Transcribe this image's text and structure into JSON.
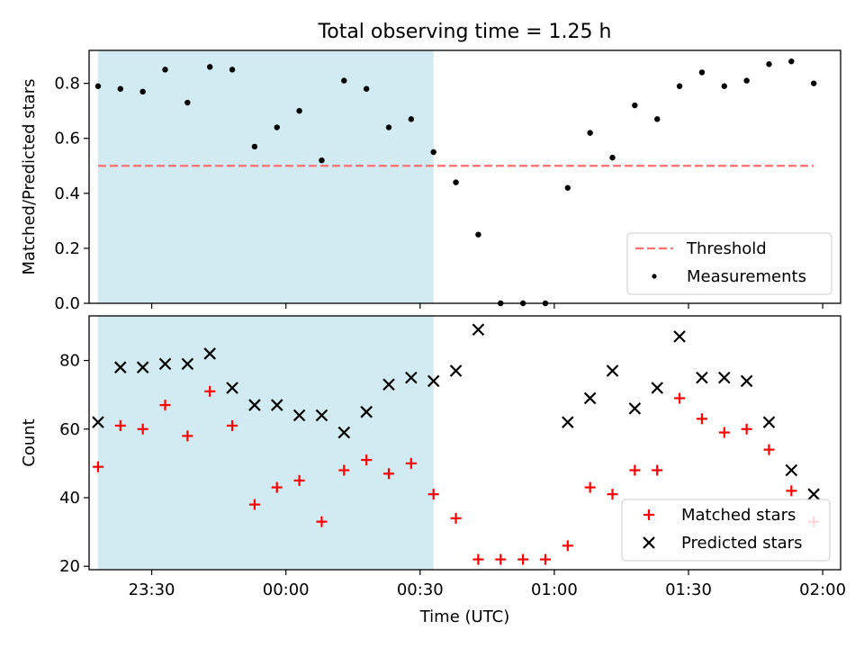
{
  "figure": {
    "title": "Total observing time = 1.25 h",
    "xlabel": "Time (UTC)"
  },
  "colors": {
    "shade": "#add8e6",
    "threshold": "#ff6f6f",
    "measurements": "#000000",
    "matched": "#ff0000",
    "predicted": "#000000"
  },
  "chart_data": [
    {
      "type": "scatter",
      "ylabel": "Matched/Predicted stars",
      "xlim": [
        "23:16",
        "02:04"
      ],
      "ylim": [
        0,
        0.92
      ],
      "yticks": [
        0.0,
        0.2,
        0.4,
        0.6,
        0.8
      ],
      "ytick_labels": [
        "0.0",
        "0.2",
        "0.4",
        "0.6",
        "0.8"
      ],
      "shaded_interval": [
        "23:18",
        "00:33"
      ],
      "threshold": {
        "name": "Threshold",
        "value": 0.5,
        "x_range": [
          "23:18",
          "01:58"
        ]
      },
      "series": [
        {
          "name": "Measurements",
          "x": [
            "23:18",
            "23:23",
            "23:28",
            "23:33",
            "23:38",
            "23:43",
            "23:48",
            "23:53",
            "23:58",
            "00:03",
            "00:08",
            "00:13",
            "00:18",
            "00:23",
            "00:28",
            "00:33",
            "00:38",
            "00:43",
            "00:48",
            "00:53",
            "00:58",
            "01:03",
            "01:08",
            "01:13",
            "01:18",
            "01:23",
            "01:28",
            "01:33",
            "01:38",
            "01:43",
            "01:48",
            "01:53",
            "01:58"
          ],
          "y": [
            0.79,
            0.78,
            0.77,
            0.85,
            0.73,
            0.86,
            0.85,
            0.57,
            0.64,
            0.7,
            0.52,
            0.81,
            0.78,
            0.64,
            0.67,
            0.55,
            0.44,
            0.25,
            0.0,
            0.0,
            0.0,
            0.42,
            0.62,
            0.53,
            0.72,
            0.67,
            0.79,
            0.84,
            0.79,
            0.81,
            0.87,
            0.88,
            0.8
          ]
        }
      ],
      "legend": {
        "placement": "lower-right",
        "entries": [
          "Threshold",
          "Measurements"
        ]
      }
    },
    {
      "type": "scatter",
      "ylabel": "Count",
      "xlim": [
        "23:16",
        "02:04"
      ],
      "ylim": [
        19,
        93
      ],
      "yticks": [
        20,
        40,
        60,
        80
      ],
      "ytick_labels": [
        "20",
        "40",
        "60",
        "80"
      ],
      "xticks": [
        "23:30",
        "00:00",
        "00:30",
        "01:00",
        "01:30",
        "02:00"
      ],
      "xtick_labels": [
        "23:30",
        "00:00",
        "00:30",
        "01:00",
        "01:30",
        "02:00"
      ],
      "shaded_interval": [
        "23:18",
        "00:33"
      ],
      "x": [
        "23:18",
        "23:23",
        "23:28",
        "23:33",
        "23:38",
        "23:43",
        "23:48",
        "23:53",
        "23:58",
        "00:03",
        "00:08",
        "00:13",
        "00:18",
        "00:23",
        "00:28",
        "00:33",
        "00:38",
        "00:43",
        "00:48",
        "00:53",
        "00:58",
        "01:03",
        "01:08",
        "01:13",
        "01:18",
        "01:23",
        "01:28",
        "01:33",
        "01:38",
        "01:43",
        "01:48",
        "01:53",
        "01:58"
      ],
      "series": [
        {
          "name": "Matched stars",
          "marker": "+",
          "values": [
            49,
            61,
            60,
            67,
            58,
            71,
            61,
            38,
            43,
            45,
            33,
            48,
            51,
            47,
            50,
            41,
            34,
            22,
            22,
            22,
            22,
            26,
            43,
            41,
            48,
            48,
            69,
            63,
            59,
            60,
            54,
            42,
            33
          ]
        },
        {
          "name": "Predicted stars",
          "marker": "x",
          "values": [
            62,
            78,
            78,
            79,
            79,
            82,
            72,
            67,
            67,
            64,
            64,
            59,
            65,
            73,
            75,
            74,
            77,
            89,
            null,
            null,
            null,
            62,
            69,
            77,
            66,
            72,
            87,
            75,
            75,
            74,
            62,
            48,
            41
          ]
        }
      ],
      "legend": {
        "placement": "lower-right",
        "entries": [
          "Matched stars",
          "Predicted stars"
        ]
      }
    }
  ]
}
